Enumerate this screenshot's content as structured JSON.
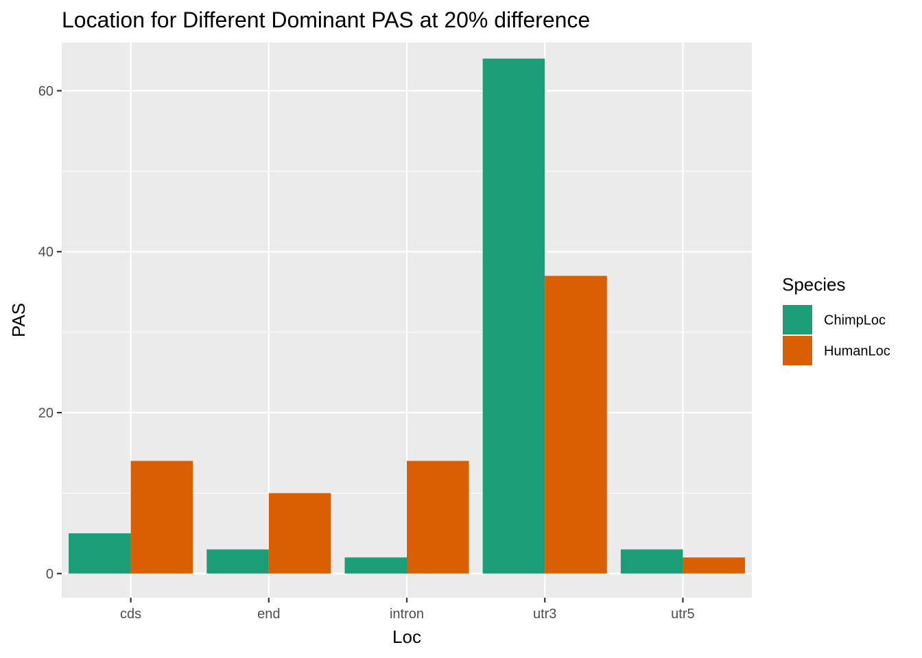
{
  "chart_data": {
    "type": "bar",
    "title": "Location for Different Dominant PAS at 20% difference",
    "xlabel": "Loc",
    "ylabel": "PAS",
    "categories": [
      "cds",
      "end",
      "intron",
      "utr3",
      "utr5"
    ],
    "series": [
      {
        "name": "ChimpLoc",
        "color": "#1b9e77",
        "values": [
          5,
          3,
          2,
          64,
          3
        ]
      },
      {
        "name": "HumanLoc",
        "color": "#d95f02",
        "values": [
          14,
          10,
          14,
          37,
          2
        ]
      }
    ],
    "ylim": [
      -3,
      66
    ],
    "yticks": [
      0,
      20,
      40,
      60
    ],
    "yticks_labels": [
      "0",
      "20",
      "40",
      "60"
    ],
    "grid": true,
    "legend": {
      "title": "Species",
      "placement": "right"
    },
    "panel_background": "#ebebeb",
    "grid_color": "#ffffff"
  }
}
